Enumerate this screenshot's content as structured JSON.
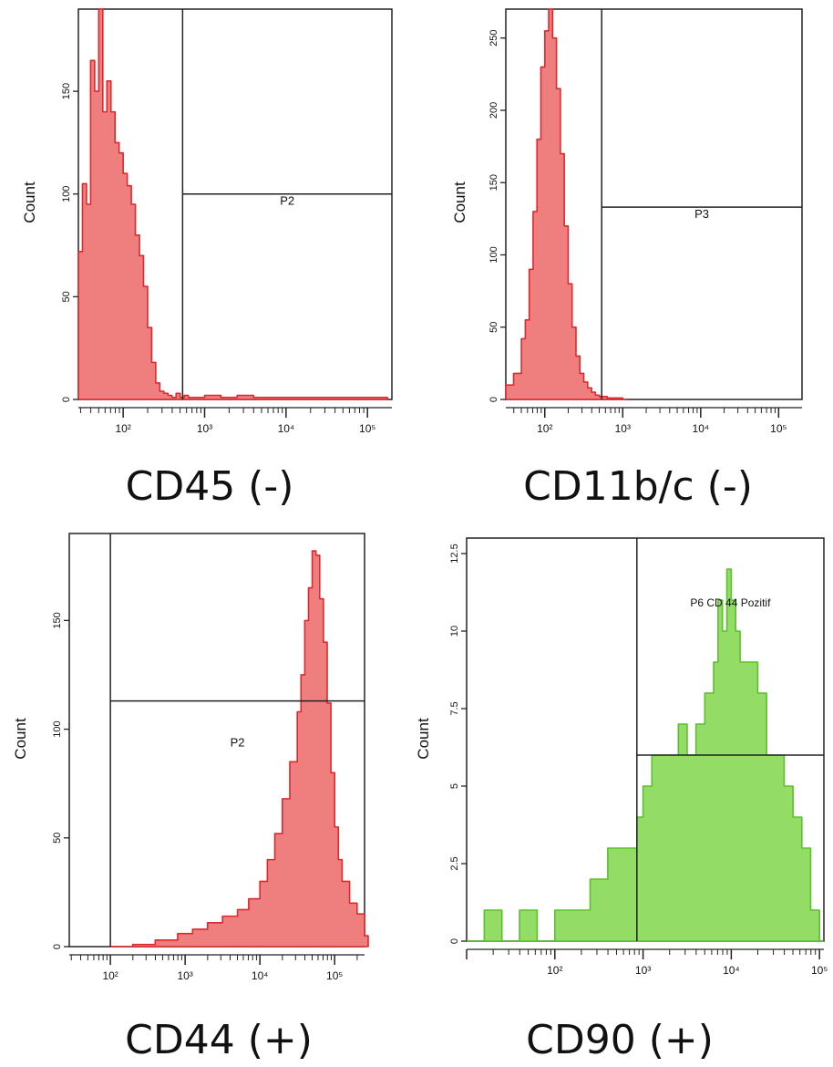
{
  "chart_data": [
    {
      "type": "histogram",
      "caption": "CD45 (-)",
      "ylabel": "Count",
      "color": "#e0272b",
      "fill": "#ef7f7f",
      "ylim": [
        0,
        190
      ],
      "y_ticks": [
        "0",
        "50",
        "100",
        "150"
      ],
      "x_log_range": [
        1.45,
        5.3
      ],
      "x_ticks": [
        {
          "exp": 2,
          "label": "10²"
        },
        {
          "exp": 3,
          "label": "10³"
        },
        {
          "exp": 4,
          "label": "10⁴"
        },
        {
          "exp": 5,
          "label": "10⁵"
        }
      ],
      "gate": {
        "label": "P2",
        "x_start_log": 2.73,
        "level": 100
      },
      "x": [
        1.45,
        1.5,
        1.55,
        1.6,
        1.65,
        1.7,
        1.75,
        1.8,
        1.85,
        1.9,
        1.95,
        2.0,
        2.05,
        2.1,
        2.15,
        2.2,
        2.25,
        2.3,
        2.35,
        2.4,
        2.45,
        2.5,
        2.55,
        2.6,
        2.65,
        2.7,
        2.75,
        2.8,
        3.0,
        3.2,
        3.4,
        3.6,
        3.8,
        4.0,
        4.4,
        4.8,
        5.2
      ],
      "values": [
        72,
        105,
        95,
        165,
        150,
        190,
        140,
        155,
        140,
        125,
        120,
        110,
        104,
        95,
        80,
        70,
        55,
        35,
        18,
        8,
        4,
        3,
        2,
        1,
        3,
        1,
        2,
        1,
        2,
        1,
        2,
        1,
        1,
        1,
        1,
        1,
        1
      ]
    },
    {
      "type": "histogram",
      "caption": "CD11b/c (-)",
      "ylabel": "Count",
      "color": "#e0272b",
      "fill": "#ef7f7f",
      "ylim": [
        0,
        270
      ],
      "y_ticks": [
        "0",
        "50",
        "100",
        "150",
        "200",
        "250"
      ],
      "x_log_range": [
        1.5,
        5.3
      ],
      "x_ticks": [
        {
          "exp": 2,
          "label": "10²"
        },
        {
          "exp": 3,
          "label": "10³"
        },
        {
          "exp": 4,
          "label": "10⁴"
        },
        {
          "exp": 5,
          "label": "10⁵"
        }
      ],
      "gate": {
        "label": "P3",
        "x_start_log": 2.73,
        "level": 133
      },
      "x": [
        1.5,
        1.6,
        1.7,
        1.75,
        1.8,
        1.85,
        1.9,
        1.95,
        2.0,
        2.05,
        2.1,
        2.15,
        2.2,
        2.25,
        2.3,
        2.35,
        2.4,
        2.45,
        2.5,
        2.55,
        2.6,
        2.65,
        2.7,
        2.8,
        2.9,
        3.0
      ],
      "values": [
        10,
        18,
        42,
        55,
        90,
        130,
        180,
        230,
        255,
        270,
        250,
        215,
        170,
        120,
        80,
        50,
        30,
        18,
        12,
        8,
        5,
        3,
        2,
        1,
        1,
        0
      ]
    },
    {
      "type": "histogram",
      "caption": "CD44 (+)",
      "ylabel": "Count",
      "color": "#e0272b",
      "fill": "#ef7f7f",
      "ylim": [
        0,
        190
      ],
      "y_ticks": [
        "0",
        "50",
        "100",
        "150"
      ],
      "x_log_range": [
        1.45,
        5.4
      ],
      "x_ticks": [
        {
          "exp": 2,
          "label": "10²"
        },
        {
          "exp": 3,
          "label": "10³"
        },
        {
          "exp": 4,
          "label": "10⁴"
        },
        {
          "exp": 5,
          "label": "10⁵"
        }
      ],
      "gate": {
        "label": "P2",
        "x_start_log": 2.0,
        "level": 113
      },
      "x": [
        2.0,
        2.3,
        2.6,
        2.9,
        3.1,
        3.3,
        3.5,
        3.7,
        3.85,
        4.0,
        4.1,
        4.2,
        4.3,
        4.4,
        4.5,
        4.55,
        4.6,
        4.65,
        4.7,
        4.75,
        4.8,
        4.85,
        4.9,
        4.95,
        5.0,
        5.05,
        5.1,
        5.2,
        5.3,
        5.4
      ],
      "values": [
        0,
        1,
        3,
        6,
        8,
        11,
        14,
        17,
        22,
        30,
        40,
        52,
        68,
        85,
        108,
        125,
        150,
        165,
        182,
        180,
        160,
        140,
        112,
        80,
        55,
        40,
        30,
        20,
        15,
        5
      ]
    },
    {
      "type": "histogram",
      "caption": "CD90 (+)",
      "ylabel": "Count",
      "color": "#5ac12c",
      "fill": "#93dc65",
      "ylim": [
        0,
        13
      ],
      "y_ticks": [
        "0",
        "2.5",
        "5",
        "7.5",
        "10",
        "12.5"
      ],
      "x_log_range": [
        1.0,
        5.05
      ],
      "x_ticks": [
        {
          "exp": 2,
          "label": "10²"
        },
        {
          "exp": 3,
          "label": "10³"
        },
        {
          "exp": 4,
          "label": "10⁴"
        },
        {
          "exp": 5,
          "label": "10⁵"
        }
      ],
      "gate": {
        "label": "P6 CD 44 Pozitif",
        "x_start_log": 2.93,
        "level": 6
      },
      "x": [
        1.0,
        1.2,
        1.4,
        1.6,
        1.8,
        2.0,
        2.2,
        2.4,
        2.6,
        2.8,
        2.93,
        3.0,
        3.1,
        3.2,
        3.3,
        3.4,
        3.5,
        3.6,
        3.7,
        3.8,
        3.85,
        3.9,
        3.95,
        4.0,
        4.05,
        4.1,
        4.2,
        4.3,
        4.4,
        4.5,
        4.6,
        4.7,
        4.8,
        4.9,
        5.0
      ],
      "values": [
        0,
        1,
        0,
        1,
        0,
        1,
        1,
        2,
        3,
        3,
        4,
        5,
        6,
        6,
        6,
        7,
        6,
        7,
        8,
        9,
        11,
        10,
        12,
        11,
        10,
        9,
        9,
        8,
        6,
        6,
        5,
        4,
        3,
        1,
        0
      ]
    }
  ]
}
